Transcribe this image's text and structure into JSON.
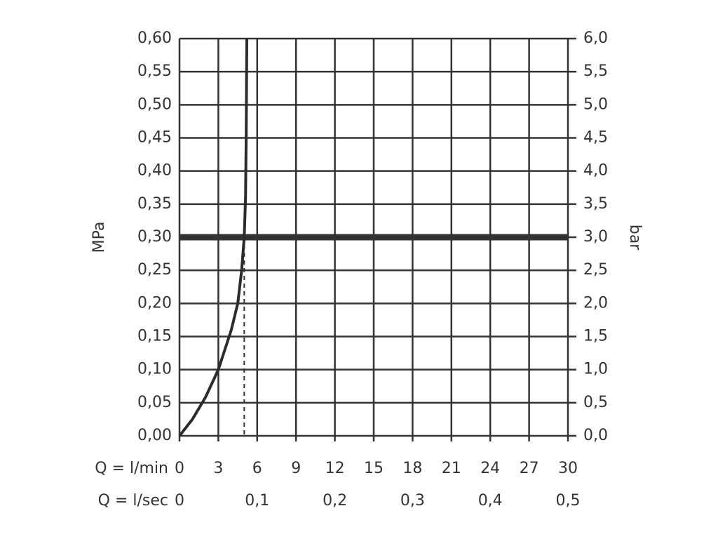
{
  "chart_data": {
    "type": "line",
    "y_label": "MPa",
    "y2_label": "bar",
    "x_label": "Q = l/min",
    "x2_label": "Q = l/sec",
    "xlim": [
      0,
      30
    ],
    "xticks": [
      0,
      3,
      6,
      9,
      12,
      15,
      18,
      21,
      24,
      27,
      30
    ],
    "x2lim": [
      0,
      0.5
    ],
    "x2ticks": [
      {
        "value": 0,
        "label": "0"
      },
      {
        "value": 0.1,
        "label": "0,1"
      },
      {
        "value": 0.2,
        "label": "0,2"
      },
      {
        "value": 0.3,
        "label": "0,3"
      },
      {
        "value": 0.4,
        "label": "0,4"
      },
      {
        "value": 0.5,
        "label": "0,5"
      }
    ],
    "ylim": [
      0,
      0.6
    ],
    "yticks": [
      {
        "value": 0,
        "label": "0,00"
      },
      {
        "value": 0.05,
        "label": "0,05"
      },
      {
        "value": 0.1,
        "label": "0,10"
      },
      {
        "value": 0.15,
        "label": "0,15"
      },
      {
        "value": 0.2,
        "label": "0,20"
      },
      {
        "value": 0.25,
        "label": "0,25"
      },
      {
        "value": 0.3,
        "label": "0,30"
      },
      {
        "value": 0.35,
        "label": "0,35"
      },
      {
        "value": 0.4,
        "label": "0,40"
      },
      {
        "value": 0.45,
        "label": "0,45"
      },
      {
        "value": 0.5,
        "label": "0,50"
      },
      {
        "value": 0.55,
        "label": "0,55"
      },
      {
        "value": 0.6,
        "label": "0,60"
      }
    ],
    "y2lim": [
      0,
      6
    ],
    "y2ticks": [
      {
        "value": 0,
        "label": "0,0"
      },
      {
        "value": 0.5,
        "label": "0,5"
      },
      {
        "value": 1,
        "label": "1,0"
      },
      {
        "value": 1.5,
        "label": "1,5"
      },
      {
        "value": 2,
        "label": "2,0"
      },
      {
        "value": 2.5,
        "label": "2,5"
      },
      {
        "value": 3,
        "label": "3,0"
      },
      {
        "value": 3.5,
        "label": "3,5"
      },
      {
        "value": 4,
        "label": "4,0"
      },
      {
        "value": 4.5,
        "label": "4,5"
      },
      {
        "value": 5,
        "label": "5,0"
      },
      {
        "value": 5.5,
        "label": "5,5"
      },
      {
        "value": 6,
        "label": "6,0"
      }
    ],
    "grid": true,
    "series": [
      {
        "color": "#2b2b2b",
        "x": [
          0,
          1,
          2,
          3,
          4,
          4.5,
          4.8,
          5.0,
          5.1,
          5.15,
          5.2
        ],
        "values": [
          0,
          0.025,
          0.058,
          0.1,
          0.16,
          0.2,
          0.25,
          0.3,
          0.36,
          0.45,
          0.6
        ]
      }
    ],
    "hline": 0.3,
    "vline_x": 5
  }
}
